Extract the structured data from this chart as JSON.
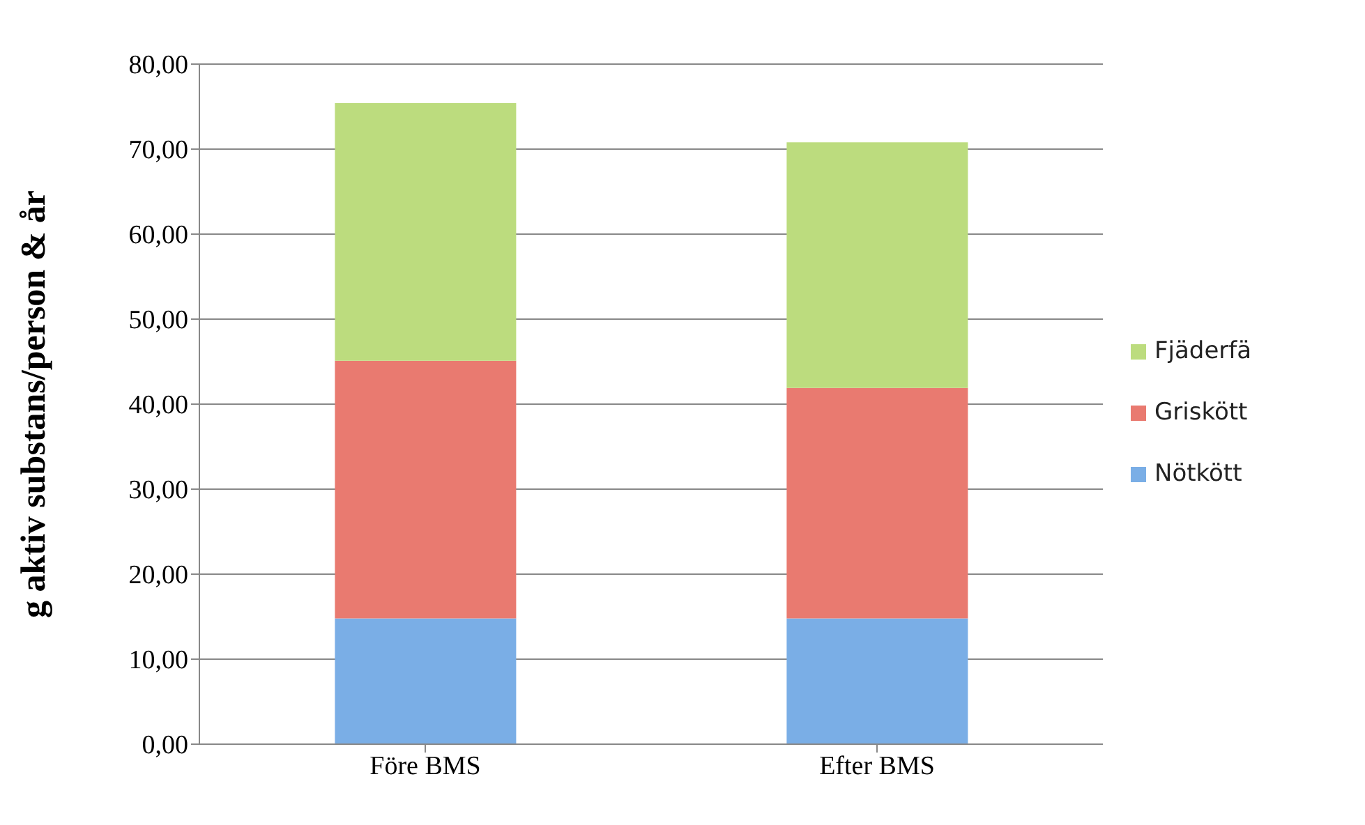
{
  "chart_data": {
    "type": "bar",
    "stacked": true,
    "ylabel": "g aktiv substans/person & år",
    "categories": [
      "Före BMS",
      "Efter BMS"
    ],
    "series": [
      {
        "name": "Nötkött",
        "color": "#7aaee6",
        "values": [
          14.8,
          14.8
        ]
      },
      {
        "name": "Griskött",
        "color": "#e97a70",
        "values": [
          30.3,
          27.1
        ]
      },
      {
        "name": "Fjäderfä",
        "color": "#bcdc7e",
        "values": [
          30.3,
          28.9
        ]
      }
    ],
    "ylim": [
      0,
      80
    ],
    "yticks": [
      {
        "value": 0,
        "label": "0,00"
      },
      {
        "value": 10,
        "label": "10,00"
      },
      {
        "value": 20,
        "label": "20,00"
      },
      {
        "value": 30,
        "label": "30,00"
      },
      {
        "value": 40,
        "label": "40,00"
      },
      {
        "value": 50,
        "label": "50,00"
      },
      {
        "value": 60,
        "label": "60,00"
      },
      {
        "value": 70,
        "label": "70,00"
      },
      {
        "value": 80,
        "label": "80,00"
      }
    ],
    "grid": "y",
    "legend": "right"
  }
}
